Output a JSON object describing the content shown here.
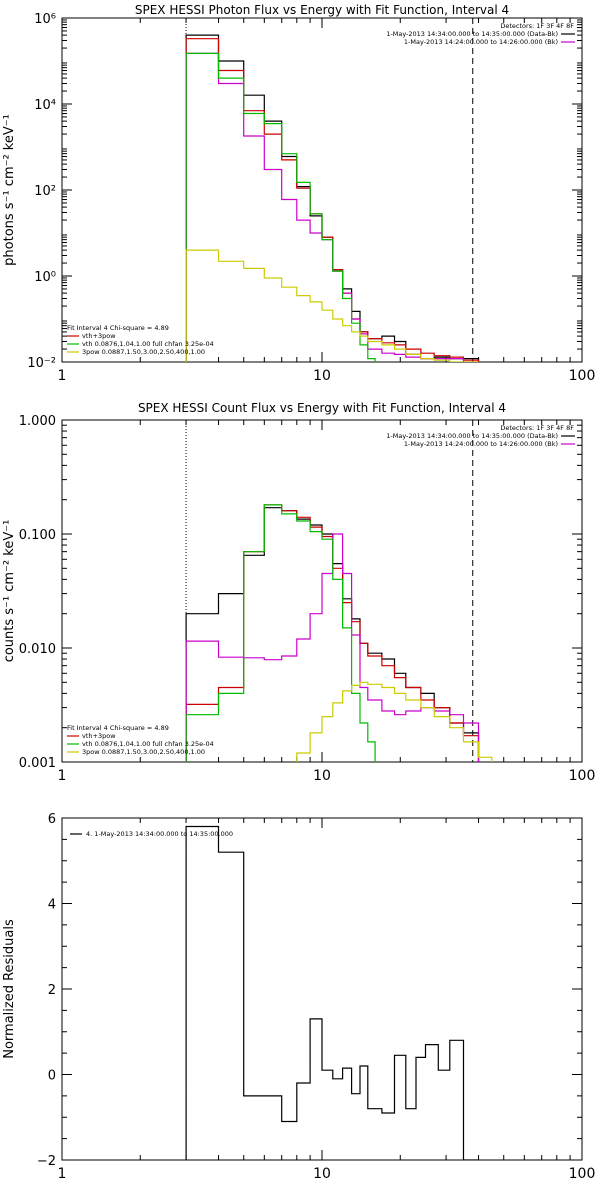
{
  "chart_data": [
    {
      "type": "line",
      "title": "SPEX HESSI Photon Flux vs Energy with Fit Function, Interval 4",
      "xlabel": "",
      "ylabel": "photons s⁻¹ cm⁻² keV⁻¹",
      "xscale": "log",
      "yscale": "log",
      "xlim": [
        1,
        100
      ],
      "ylim": [
        0.01,
        1000000
      ],
      "x_ticks": [
        {
          "value": 1,
          "label": "1"
        },
        {
          "value": 10,
          "label": "10"
        },
        {
          "value": 100,
          "label": "100"
        }
      ],
      "y_ticks": [
        {
          "value": 0.01,
          "label": "10⁻²"
        },
        {
          "value": 1,
          "label": "10⁰"
        },
        {
          "value": 100,
          "label": "10²"
        },
        {
          "value": 10000,
          "label": "10⁴"
        },
        {
          "value": 1000000,
          "label": "10⁶"
        }
      ],
      "vlines": [
        {
          "x": 3,
          "style": "dotted"
        },
        {
          "x": 38,
          "style": "dashed"
        }
      ],
      "legend_top": {
        "position": "top-right",
        "lines": [
          {
            "text": "Detectors: 1F 3F 4F 8F",
            "color": ""
          },
          {
            "text": "1-May-2013 14:34:00.000 to 14:35:00.000 (Data-Bk)",
            "color": "#000000"
          },
          {
            "text": "1-May-2013 14:24:00.000 to 14:26:00.000 (Bk)",
            "color": "#cc00cc"
          }
        ]
      },
      "legend_fit": {
        "position": "bottom-left",
        "lines": [
          {
            "text": "Fit Interval 4   Chi-square = 4.89",
            "color": "#000000"
          },
          {
            "text": "vth+3pow",
            "color": "#cc0000"
          },
          {
            "text": "vth 0.0876,1.04,1.00  full chfan 3.25e-04",
            "color": "#00bb00"
          },
          {
            "text": "3pow 0.0887,1.50,3.00,2.50,400,1.00",
            "color": "#cccc00"
          }
        ]
      },
      "series": [
        {
          "name": "",
          "color": "#000000",
          "edges": [
            3,
            4,
            5,
            6,
            7,
            8,
            9,
            10,
            11,
            12,
            13,
            14,
            15,
            17,
            19,
            21,
            24,
            27,
            31,
            35,
            40
          ],
          "values": [
            400000,
            100000,
            16000,
            4000,
            600,
            120,
            25,
            8,
            1.4,
            0.5,
            0.15,
            0.05,
            0.035,
            0.04,
            0.03,
            0.015,
            0.012,
            0.013,
            0.012,
            0.012
          ]
        },
        {
          "name": "",
          "color": "#cc0000",
          "edges": [
            3,
            4,
            5,
            6,
            7,
            8,
            9,
            10,
            11,
            12,
            13,
            14,
            15,
            17,
            19,
            21,
            24,
            27,
            31,
            35,
            40
          ],
          "values": [
            330000,
            60000,
            7000,
            2000,
            500,
            110,
            28,
            8,
            1.4,
            0.4,
            0.1,
            0.05,
            0.035,
            0.028,
            0.025,
            0.02,
            0.016,
            0.014,
            0.013,
            0.011
          ]
        },
        {
          "name": "",
          "color": "#cc00cc",
          "edges": [
            3,
            4,
            5,
            6,
            7,
            8,
            9,
            10,
            11,
            12,
            13,
            14,
            15,
            17,
            19,
            21,
            24,
            27,
            31,
            35,
            40
          ],
          "values": [
            150000,
            30000,
            1800,
            300,
            60,
            20,
            10,
            7,
            1.3,
            0.4,
            0.1,
            0.045,
            0.02,
            0.016,
            0.015,
            0.013,
            0.012,
            0.012,
            0.012,
            0.01
          ]
        },
        {
          "name": "",
          "color": "#00bb00",
          "edges": [
            3,
            4,
            5,
            6,
            7,
            8,
            9,
            10,
            11,
            12,
            13,
            14,
            15,
            16
          ],
          "values": [
            150000,
            40000,
            6000,
            3500,
            700,
            150,
            28,
            7,
            1.3,
            0.3,
            0.08,
            0.025,
            0.012
          ]
        },
        {
          "name": "",
          "color": "#cccc00",
          "edges": [
            3,
            4,
            5,
            6,
            7,
            8,
            9,
            10,
            11,
            12,
            13,
            14,
            15,
            17,
            19,
            21,
            24,
            27,
            31,
            35,
            40
          ],
          "values": [
            4,
            2.2,
            1.5,
            0.9,
            0.55,
            0.35,
            0.25,
            0.16,
            0.1,
            0.07,
            0.05,
            0.04,
            0.03,
            0.025,
            0.02,
            0.015,
            0.012,
            0.011,
            0.01,
            0.01
          ]
        }
      ]
    },
    {
      "type": "line",
      "title": "SPEX HESSI Count Flux vs Energy with Fit Function, Interval 4",
      "xlabel": "",
      "ylabel": "counts s⁻¹ cm⁻² keV⁻¹",
      "xscale": "log",
      "yscale": "log",
      "xlim": [
        1,
        100
      ],
      "ylim": [
        0.001,
        1
      ],
      "x_ticks": [
        {
          "value": 1,
          "label": "1"
        },
        {
          "value": 10,
          "label": "10"
        },
        {
          "value": 100,
          "label": "100"
        }
      ],
      "y_ticks": [
        {
          "value": 0.001,
          "label": "0.001"
        },
        {
          "value": 0.01,
          "label": "0.010"
        },
        {
          "value": 0.1,
          "label": "0.100"
        },
        {
          "value": 1,
          "label": "1.000"
        }
      ],
      "vlines": [
        {
          "x": 3,
          "style": "dotted"
        },
        {
          "x": 38,
          "style": "dashed"
        }
      ],
      "legend_top": {
        "position": "top-right",
        "lines": [
          {
            "text": "Detectors: 1F 3F 4F 8F",
            "color": ""
          },
          {
            "text": "1-May-2013 14:34:00.000 to 14:35:00.000 (Data-Bk)",
            "color": "#000000"
          },
          {
            "text": "1-May-2013 14:24:00.000 to 14:26:00.000 (Bk)",
            "color": "#cc00cc"
          }
        ]
      },
      "legend_fit": {
        "position": "bottom-left",
        "lines": [
          {
            "text": "Fit Interval 4   Chi-square = 4.89",
            "color": "#000000"
          },
          {
            "text": "vth+3pow",
            "color": "#cc0000"
          },
          {
            "text": "vth 0.0876,1.04,1.00  full chfan 3.25e-04",
            "color": "#00bb00"
          },
          {
            "text": "3pow 0.0887,1.50,3.00,2.50,400,1.00",
            "color": "#cccc00"
          }
        ]
      },
      "series": [
        {
          "name": "",
          "color": "#000000",
          "edges": [
            3,
            4,
            5,
            6,
            7,
            8,
            9,
            10,
            11,
            12,
            13,
            14,
            15,
            17,
            19,
            21,
            24,
            27,
            31,
            35,
            40
          ],
          "values": [
            0.02,
            0.03,
            0.065,
            0.17,
            0.16,
            0.135,
            0.12,
            0.1,
            0.055,
            0.027,
            0.018,
            0.011,
            0.009,
            0.008,
            0.006,
            0.0045,
            0.004,
            0.003,
            0.0022,
            0.0018
          ]
        },
        {
          "name": "",
          "color": "#cc0000",
          "edges": [
            3,
            4,
            5,
            6,
            7,
            8,
            9,
            10,
            11,
            12,
            13,
            14,
            15,
            17,
            19,
            21,
            24,
            27,
            31,
            35,
            40
          ],
          "values": [
            0.0032,
            0.0045,
            0.07,
            0.18,
            0.16,
            0.14,
            0.115,
            0.095,
            0.05,
            0.025,
            0.017,
            0.011,
            0.0085,
            0.007,
            0.0055,
            0.0045,
            0.0035,
            0.003,
            0.0022,
            0.0017
          ]
        },
        {
          "name": "",
          "color": "#cc00cc",
          "edges": [
            3,
            4,
            5,
            6,
            7,
            8,
            9,
            10,
            11,
            12,
            13,
            14,
            15,
            17,
            19,
            21,
            24,
            27,
            31,
            35,
            40
          ],
          "values": [
            0.0115,
            0.0083,
            0.0082,
            0.0079,
            0.0085,
            0.012,
            0.02,
            0.045,
            0.1,
            0.045,
            0.013,
            0.0045,
            0.0035,
            0.0028,
            0.0026,
            0.0028,
            0.003,
            0.0028,
            0.0026,
            0.0022
          ]
        },
        {
          "name": "",
          "color": "#00bb00",
          "edges": [
            3,
            4,
            5,
            6,
            7,
            8,
            9,
            10,
            11,
            12,
            13,
            14,
            15,
            16
          ],
          "values": [
            0.0026,
            0.004,
            0.07,
            0.18,
            0.15,
            0.13,
            0.105,
            0.09,
            0.04,
            0.015,
            0.004,
            0.0022,
            0.0015
          ]
        },
        {
          "name": "",
          "color": "#cccc00",
          "edges": [
            8,
            9,
            10,
            11,
            12,
            13,
            14,
            15,
            17,
            19,
            21,
            24,
            27,
            31,
            35,
            40,
            45
          ],
          "values": [
            0.0012,
            0.0018,
            0.0025,
            0.0033,
            0.0042,
            0.0047,
            0.005,
            0.0048,
            0.0045,
            0.004,
            0.0035,
            0.003,
            0.0025,
            0.002,
            0.0015,
            0.0011
          ]
        }
      ]
    },
    {
      "type": "line",
      "title": "",
      "xlabel": "",
      "ylabel": "Normalized Residuals",
      "xscale": "log",
      "yscale": "linear",
      "xlim": [
        1,
        100
      ],
      "ylim": [
        -2,
        6
      ],
      "x_ticks": [
        {
          "value": 1,
          "label": "1"
        },
        {
          "value": 10,
          "label": "10"
        },
        {
          "value": 100,
          "label": "100"
        }
      ],
      "y_ticks": [
        {
          "value": -2,
          "label": "−2"
        },
        {
          "value": 0,
          "label": "0"
        },
        {
          "value": 2,
          "label": "2"
        },
        {
          "value": 4,
          "label": "4"
        },
        {
          "value": 6,
          "label": "6"
        }
      ],
      "legend_top": {
        "position": "top-left",
        "lines": [
          {
            "text": "4. 1-May-2013 14:34:00.000 to 14:35:00.000",
            "color": "#000000"
          }
        ]
      },
      "series": [
        {
          "name": "",
          "color": "#000000",
          "edges": [
            3,
            4,
            5,
            6,
            7,
            8,
            9,
            10,
            11,
            12,
            13,
            14,
            15,
            17,
            19,
            21,
            23,
            25,
            28,
            31,
            35,
            40
          ],
          "values": [
            5.8,
            5.2,
            -0.5,
            -0.5,
            -1.1,
            -0.2,
            1.3,
            0.1,
            -0.1,
            0.15,
            -0.45,
            0.2,
            -0.8,
            -0.9,
            0.45,
            -0.8,
            0.4,
            0.7,
            0.1,
            0.8,
            -2.0
          ]
        }
      ]
    }
  ]
}
